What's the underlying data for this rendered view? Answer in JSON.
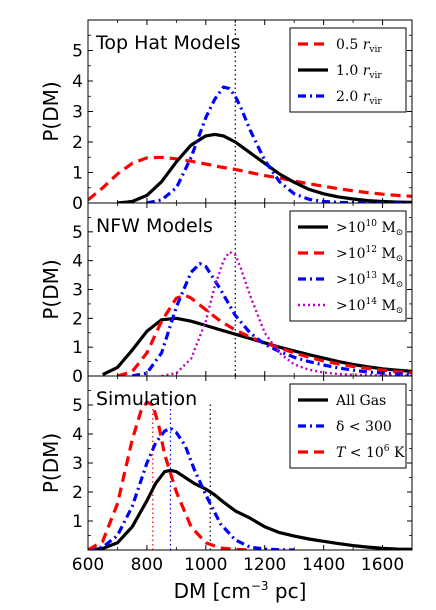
{
  "chart_data": [
    {
      "type": "line",
      "title": "Top Hat Models",
      "ylabel": "P(DM)",
      "xlim": [
        600,
        1700
      ],
      "ylim": [
        0,
        6
      ],
      "yticks": [
        "0",
        "1",
        "2",
        "3",
        "4",
        "5"
      ],
      "vline": 1100,
      "vline_color": "#000000",
      "legend_position": "top-right",
      "series": [
        {
          "name": "0.5 r_vir",
          "label_main": "0.5 ",
          "label_var": "r",
          "label_sub": "vir",
          "color": "#ff0000",
          "dash": "dashed",
          "x": [
            600,
            650,
            700,
            750,
            800,
            850,
            900,
            950,
            1000,
            1050,
            1100,
            1150,
            1200,
            1250,
            1300,
            1350,
            1400,
            1450,
            1500,
            1550,
            1600,
            1650,
            1700
          ],
          "y": [
            0.1,
            0.5,
            0.95,
            1.3,
            1.48,
            1.5,
            1.45,
            1.37,
            1.28,
            1.18,
            1.1,
            1.0,
            0.9,
            0.82,
            0.72,
            0.63,
            0.55,
            0.47,
            0.4,
            0.34,
            0.29,
            0.25,
            0.22
          ]
        },
        {
          "name": "1.0 r_vir",
          "label_main": "1.0 ",
          "label_var": "r",
          "label_sub": "vir",
          "color": "#000000",
          "dash": "solid",
          "x": [
            700,
            750,
            800,
            850,
            900,
            950,
            1000,
            1030,
            1060,
            1100,
            1150,
            1200,
            1250,
            1300,
            1350,
            1400,
            1450,
            1500,
            1550,
            1600,
            1650,
            1700
          ],
          "y": [
            0.0,
            0.05,
            0.25,
            0.7,
            1.35,
            1.9,
            2.2,
            2.25,
            2.2,
            2.0,
            1.65,
            1.3,
            0.95,
            0.68,
            0.45,
            0.3,
            0.2,
            0.13,
            0.08,
            0.05,
            0.03,
            0.02
          ]
        },
        {
          "name": "2.0 r_vir",
          "label_main": "2.0 ",
          "label_var": "r",
          "label_sub": "vir",
          "color": "#0000ff",
          "dash": "dashdot",
          "x": [
            800,
            850,
            900,
            950,
            1000,
            1030,
            1060,
            1080,
            1100,
            1120,
            1150,
            1200,
            1250,
            1300,
            1350,
            1400,
            1450,
            1500,
            1600,
            1700
          ],
          "y": [
            0.0,
            0.1,
            0.5,
            1.5,
            2.8,
            3.4,
            3.8,
            3.75,
            3.5,
            3.1,
            2.4,
            1.4,
            0.7,
            0.3,
            0.12,
            0.05,
            0.02,
            0.01,
            0.0,
            0.0
          ]
        }
      ]
    },
    {
      "type": "line",
      "title": "NFW Models",
      "ylabel": "P(DM)",
      "xlim": [
        600,
        1700
      ],
      "ylim": [
        0,
        6
      ],
      "yticks": [
        "0",
        "1",
        "2",
        "3",
        "4",
        "5"
      ],
      "vline": 1100,
      "vline_color": "#000000",
      "legend_position": "top-right",
      "series": [
        {
          "name": ">10^10 M_sun",
          "label_main": ">10",
          "label_sup": "10",
          "label_unit": " M",
          "label_sub": "⊙",
          "color": "#000000",
          "dash": "solid",
          "x": [
            650,
            700,
            750,
            800,
            850,
            900,
            950,
            1000,
            1050,
            1100,
            1150,
            1200,
            1250,
            1300,
            1350,
            1400,
            1450,
            1500,
            1550,
            1600,
            1650,
            1700
          ],
          "y": [
            0.05,
            0.3,
            0.9,
            1.55,
            1.95,
            2.0,
            1.9,
            1.75,
            1.6,
            1.45,
            1.3,
            1.15,
            1.0,
            0.87,
            0.74,
            0.62,
            0.5,
            0.4,
            0.32,
            0.25,
            0.2,
            0.16
          ]
        },
        {
          "name": ">10^12 M_sun",
          "label_main": ">10",
          "label_sup": "12",
          "label_unit": " M",
          "label_sub": "⊙",
          "color": "#ff0000",
          "dash": "dashed",
          "x": [
            700,
            750,
            800,
            850,
            900,
            930,
            950,
            1000,
            1050,
            1100,
            1150,
            1200,
            1250,
            1300,
            1350,
            1400,
            1450,
            1500,
            1550,
            1600,
            1650,
            1700
          ],
          "y": [
            0.0,
            0.15,
            0.8,
            1.9,
            2.7,
            2.8,
            2.7,
            2.3,
            1.9,
            1.6,
            1.35,
            1.15,
            0.97,
            0.8,
            0.65,
            0.52,
            0.42,
            0.33,
            0.26,
            0.2,
            0.15,
            0.12
          ]
        },
        {
          "name": ">10^13 M_sun",
          "label_main": ">10",
          "label_sup": "13",
          "label_unit": " M",
          "label_sub": "⊙",
          "color": "#0000ff",
          "dash": "dashdot",
          "x": [
            750,
            800,
            850,
            900,
            950,
            980,
            1000,
            1050,
            1100,
            1150,
            1200,
            1250,
            1300,
            1350,
            1400,
            1450,
            1500,
            1550,
            1600,
            1650,
            1700
          ],
          "y": [
            0.0,
            0.1,
            0.8,
            2.4,
            3.6,
            3.9,
            3.8,
            3.0,
            2.1,
            1.5,
            1.1,
            0.85,
            0.65,
            0.5,
            0.38,
            0.28,
            0.2,
            0.14,
            0.1,
            0.07,
            0.05
          ]
        },
        {
          "name": ">10^14 M_sun",
          "label_main": ">10",
          "label_sup": "14",
          "label_unit": " M",
          "label_sub": "⊙",
          "color": "#bf00bf",
          "dash": "dotted",
          "x": [
            850,
            900,
            950,
            1000,
            1030,
            1060,
            1080,
            1100,
            1120,
            1150,
            1200,
            1250,
            1300,
            1350,
            1400,
            1450,
            1500,
            1600,
            1700
          ],
          "y": [
            0.0,
            0.1,
            0.6,
            1.9,
            3.1,
            4.0,
            4.3,
            4.2,
            3.7,
            2.8,
            1.5,
            0.8,
            0.4,
            0.22,
            0.12,
            0.07,
            0.04,
            0.02,
            0.01
          ]
        }
      ]
    },
    {
      "type": "line",
      "title": "Simulation",
      "ylabel": "P(DM)",
      "xlabel": "DM  [cm",
      "xlabel_sup": "−3",
      "xlabel_end": " pc]",
      "xlim": [
        600,
        1700
      ],
      "ylim": [
        0,
        6
      ],
      "yticks": [
        "1",
        "2",
        "3",
        "4",
        "5"
      ],
      "xticks": [
        "600",
        "800",
        "1000",
        "1200",
        "1400",
        "1600"
      ],
      "xtick_values": [
        600,
        800,
        1000,
        1200,
        1400,
        1600
      ],
      "legend_position": "top-right",
      "vlines": [
        {
          "x": 820,
          "color": "#ff0000"
        },
        {
          "x": 880,
          "color": "#0000ff"
        },
        {
          "x": 1015,
          "color": "#000000"
        }
      ],
      "series": [
        {
          "name": "All Gas",
          "label_main": "All Gas",
          "color": "#000000",
          "dash": "solid",
          "x": [
            600,
            650,
            700,
            750,
            800,
            830,
            860,
            880,
            900,
            930,
            960,
            1000,
            1030,
            1060,
            1100,
            1150,
            1200,
            1250,
            1300,
            1350,
            1400,
            1450,
            1500,
            1550,
            1600,
            1650,
            1700
          ],
          "y": [
            0.0,
            0.05,
            0.25,
            0.8,
            1.7,
            2.3,
            2.7,
            2.75,
            2.7,
            2.5,
            2.3,
            2.1,
            1.9,
            1.65,
            1.35,
            1.1,
            0.8,
            0.6,
            0.48,
            0.38,
            0.3,
            0.22,
            0.15,
            0.1,
            0.06,
            0.03,
            0.02
          ]
        },
        {
          "name": "δ < 300",
          "label_main": "δ < 300",
          "color": "#0000ff",
          "dash": "dashdot",
          "x": [
            600,
            650,
            700,
            750,
            800,
            830,
            860,
            880,
            900,
            930,
            960,
            1000,
            1050,
            1100,
            1150,
            1200,
            1250,
            1300
          ],
          "y": [
            0.0,
            0.1,
            0.5,
            1.5,
            3.0,
            3.7,
            4.1,
            4.2,
            4.05,
            3.6,
            2.8,
            1.9,
            0.9,
            0.35,
            0.1,
            0.03,
            0.01,
            0.0
          ]
        },
        {
          "name": "T < 10^6 K",
          "label_main": "T",
          "label_rest": " < 10",
          "label_sup": "6",
          "label_unit": " K",
          "color": "#ff0000",
          "dash": "dashed",
          "x": [
            600,
            650,
            700,
            750,
            780,
            800,
            820,
            840,
            860,
            900,
            950,
            1000,
            1050,
            1100,
            1150
          ],
          "y": [
            0.0,
            0.3,
            1.6,
            3.8,
            4.8,
            5.1,
            5.0,
            4.3,
            3.3,
            2.0,
            0.8,
            0.25,
            0.07,
            0.02,
            0.0
          ]
        }
      ]
    }
  ]
}
